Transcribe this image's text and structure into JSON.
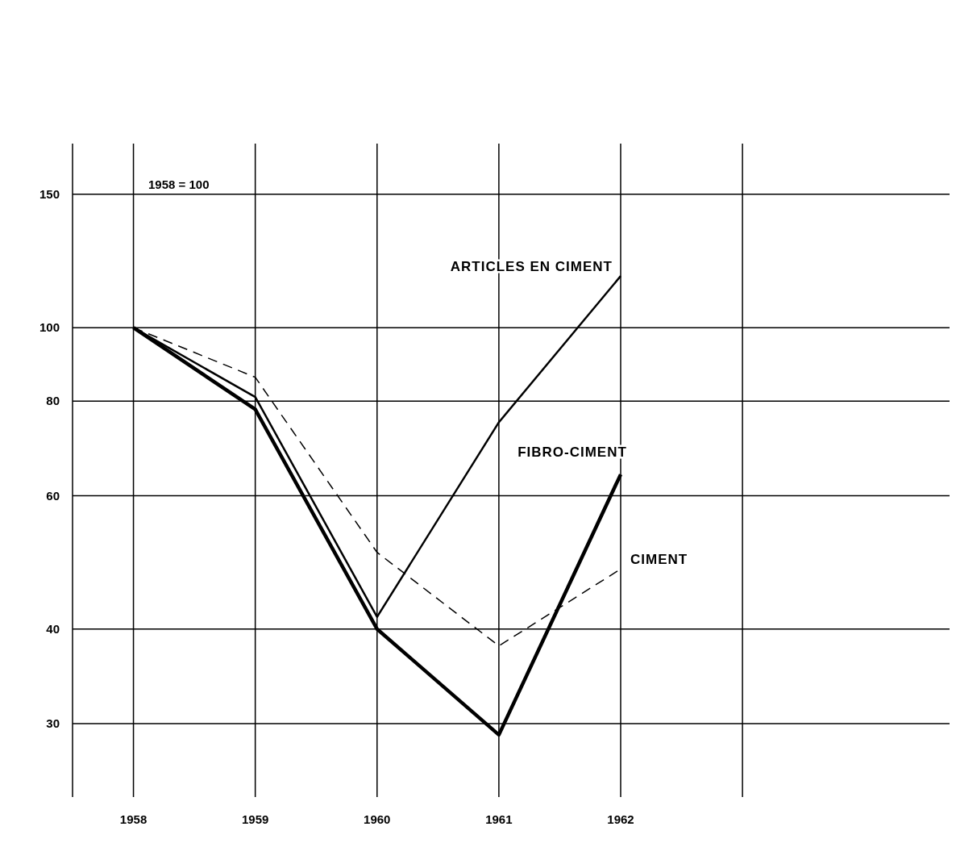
{
  "chart_data": {
    "type": "line",
    "x": [
      1958,
      1959,
      1960,
      1961,
      1962
    ],
    "series": [
      {
        "name": "ARTICLES EN CIMENT",
        "color": "#000000",
        "line_style": "solid",
        "values": [
          100,
          81,
          41.5,
          75,
          117
        ]
      },
      {
        "name": "FIBRO-CIMENT",
        "color": "#000000",
        "line_style": "solid",
        "values": [
          100,
          78,
          40,
          29,
          64
        ]
      },
      {
        "name": "CIMENT",
        "color": "#000000",
        "line_style": "dashed",
        "values": [
          100,
          86,
          50.5,
          38,
          48
        ]
      }
    ],
    "log": "y",
    "xlim": [
      1957.5,
      1964.7
    ],
    "xticks": [
      1958,
      1959,
      1960,
      1961,
      1962,
      {
        "value": 1963,
        "label": null
      }
    ],
    "ylim": [
      24,
      175
    ],
    "yticks": [
      30,
      40,
      60,
      80,
      100,
      150
    ],
    "grid": true,
    "marker": "none",
    "annotations": [
      "1958 = 100"
    ]
  }
}
